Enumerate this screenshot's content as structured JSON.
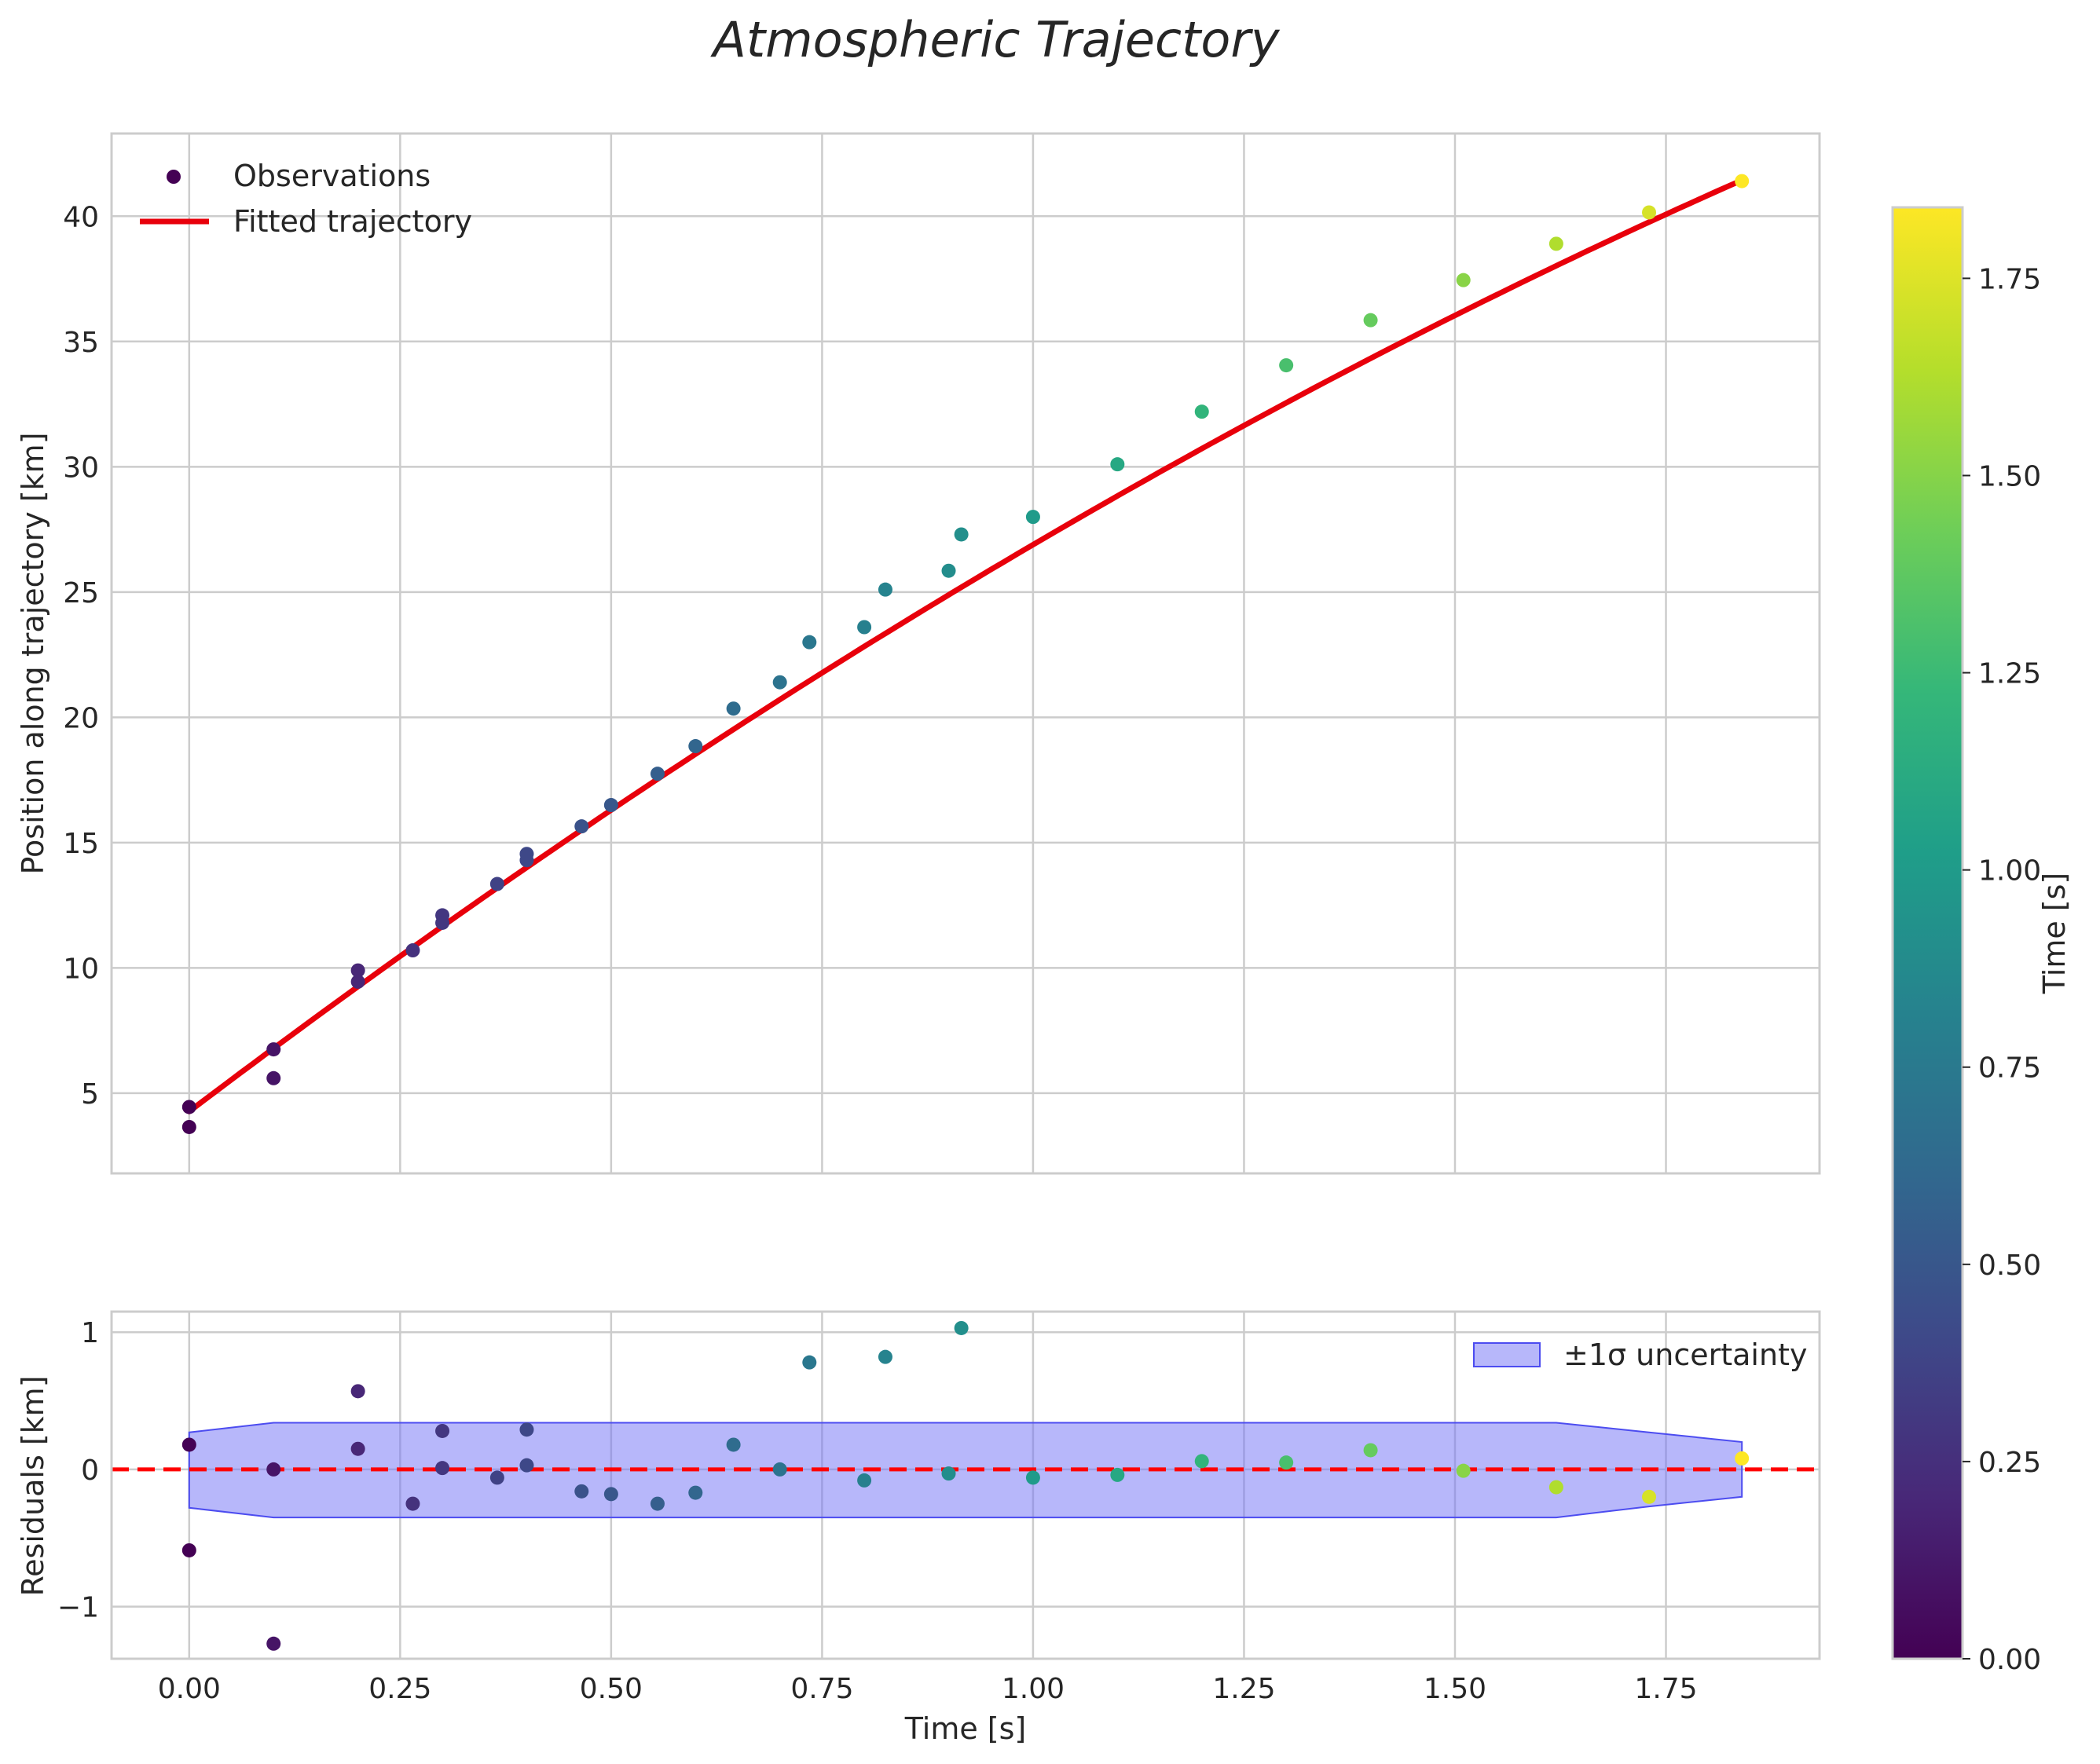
{
  "colors": {
    "fit_line": "#e8000b",
    "zero_line": "#ff0000",
    "band_fill": "#6f6ff5",
    "band_edge": "#4c4cf0",
    "grid": "#cccccc",
    "frame": "#cccccc",
    "text": "#262626",
    "viridis": [
      "#440154",
      "#482878",
      "#3e4989",
      "#31688e",
      "#26828e",
      "#1f9e89",
      "#35b779",
      "#6ece58",
      "#b5de2b",
      "#fde725"
    ]
  },
  "chart_data": [
    {
      "id": "main",
      "type": "scatter",
      "title": "Atmospheric Trajectory",
      "xlabel": "",
      "ylabel": "Position along trajectory [km]",
      "xlim": [
        -0.092,
        1.932
      ],
      "ylim": [
        1.8,
        43.3
      ],
      "xticks": [
        0.0,
        0.25,
        0.5,
        0.75,
        1.0,
        1.25,
        1.5,
        1.75
      ],
      "yticks": [
        5,
        10,
        15,
        20,
        25,
        30,
        35,
        40
      ],
      "ytick_labels": [
        "5",
        "10",
        "15",
        "20",
        "25",
        "30",
        "35",
        "40"
      ],
      "grid": true,
      "legend": {
        "placement": "top-left",
        "entries": [
          {
            "label": "Observations",
            "kind": "marker"
          },
          {
            "label": "Fitted trajectory",
            "kind": "line"
          }
        ]
      },
      "series": [
        {
          "name": "Observations",
          "kind": "scatter",
          "colored_by": "time",
          "x": [
            0.0,
            0.0,
            0.1,
            0.1,
            0.2,
            0.2,
            0.265,
            0.3,
            0.3,
            0.365,
            0.4,
            0.4,
            0.465,
            0.5,
            0.555,
            0.6,
            0.645,
            0.7,
            0.735,
            0.8,
            0.825,
            0.9,
            0.915,
            1.0,
            1.1,
            1.2,
            1.3,
            1.4,
            1.51,
            1.62,
            1.73,
            1.84
          ],
          "y": [
            4.45,
            3.65,
            6.75,
            5.6,
            9.9,
            9.45,
            10.7,
            12.1,
            11.8,
            13.35,
            14.55,
            14.3,
            15.65,
            16.5,
            17.75,
            18.85,
            20.35,
            21.4,
            23.0,
            23.6,
            25.1,
            25.85,
            27.3,
            28.0,
            30.1,
            32.2,
            34.05,
            35.85,
            37.45,
            38.9,
            40.15,
            41.4
          ]
        },
        {
          "name": "Fitted trajectory",
          "kind": "line",
          "model": "quadratic",
          "coefficients": {
            "a": 4.27,
            "b": 25.5,
            "c": -2.88
          },
          "x_range": [
            0.0,
            1.84
          ]
        }
      ]
    },
    {
      "id": "residuals",
      "type": "scatter",
      "xlabel": "Time [s]",
      "ylabel": "Residuals [km]",
      "xlim": [
        -0.092,
        1.932
      ],
      "ylim": [
        -1.38,
        1.15
      ],
      "xticks": [
        0.0,
        0.25,
        0.5,
        0.75,
        1.0,
        1.25,
        1.5,
        1.75
      ],
      "xtick_labels": [
        "0.00",
        "0.25",
        "0.50",
        "0.75",
        "1.00",
        "1.25",
        "1.50",
        "1.75"
      ],
      "yticks": [
        -1,
        0,
        1
      ],
      "ytick_labels": [
        "−1",
        "0",
        "1"
      ],
      "grid": true,
      "legend": {
        "placement": "top-right",
        "entries": [
          {
            "label": "±1σ uncertainty",
            "kind": "patch"
          }
        ]
      },
      "series": [
        {
          "name": "Residuals",
          "kind": "scatter",
          "colored_by": "time",
          "x": [
            0.0,
            0.0,
            0.1,
            0.1,
            0.2,
            0.2,
            0.265,
            0.3,
            0.3,
            0.365,
            0.4,
            0.4,
            0.465,
            0.5,
            0.555,
            0.6,
            0.645,
            0.7,
            0.735,
            0.8,
            0.825,
            0.9,
            0.915,
            1.0,
            1.1,
            1.2,
            1.3,
            1.4,
            1.51,
            1.62,
            1.73,
            1.84
          ],
          "y": [
            0.18,
            -0.59,
            0.0,
            -1.27,
            0.57,
            0.15,
            -0.25,
            0.28,
            0.01,
            -0.06,
            0.29,
            0.03,
            -0.16,
            -0.18,
            -0.25,
            -0.17,
            0.18,
            0.0,
            0.78,
            -0.08,
            0.82,
            -0.03,
            1.03,
            -0.06,
            -0.04,
            0.06,
            0.05,
            0.14,
            -0.01,
            -0.13,
            -0.2,
            0.08
          ]
        },
        {
          "name": "±1σ uncertainty",
          "kind": "band",
          "x": [
            0.0,
            0.1,
            0.2,
            0.3,
            0.4,
            0.5,
            0.6,
            0.7,
            0.8,
            0.9,
            1.0,
            1.1,
            1.2,
            1.3,
            1.4,
            1.51,
            1.62,
            1.73,
            1.84
          ],
          "upper": [
            0.27,
            0.34,
            0.34,
            0.34,
            0.34,
            0.34,
            0.34,
            0.34,
            0.34,
            0.34,
            0.34,
            0.34,
            0.34,
            0.34,
            0.34,
            0.34,
            0.34,
            0.27,
            0.2
          ],
          "lower": [
            -0.28,
            -0.35,
            -0.35,
            -0.35,
            -0.35,
            -0.35,
            -0.35,
            -0.35,
            -0.35,
            -0.35,
            -0.35,
            -0.35,
            -0.35,
            -0.35,
            -0.35,
            -0.35,
            -0.35,
            -0.27,
            -0.2
          ]
        },
        {
          "name": "Zero reference",
          "kind": "hline",
          "y": 0
        }
      ]
    },
    {
      "id": "colorbar",
      "type": "heatmap",
      "colormap": "viridis",
      "label": "Time [s]",
      "range": [
        0.0,
        1.84
      ],
      "ticks": [
        0.0,
        0.25,
        0.5,
        0.75,
        1.0,
        1.25,
        1.5,
        1.75
      ],
      "tick_labels": [
        "0.00",
        "0.25",
        "0.50",
        "0.75",
        "1.00",
        "1.25",
        "1.50",
        "1.75"
      ]
    }
  ]
}
